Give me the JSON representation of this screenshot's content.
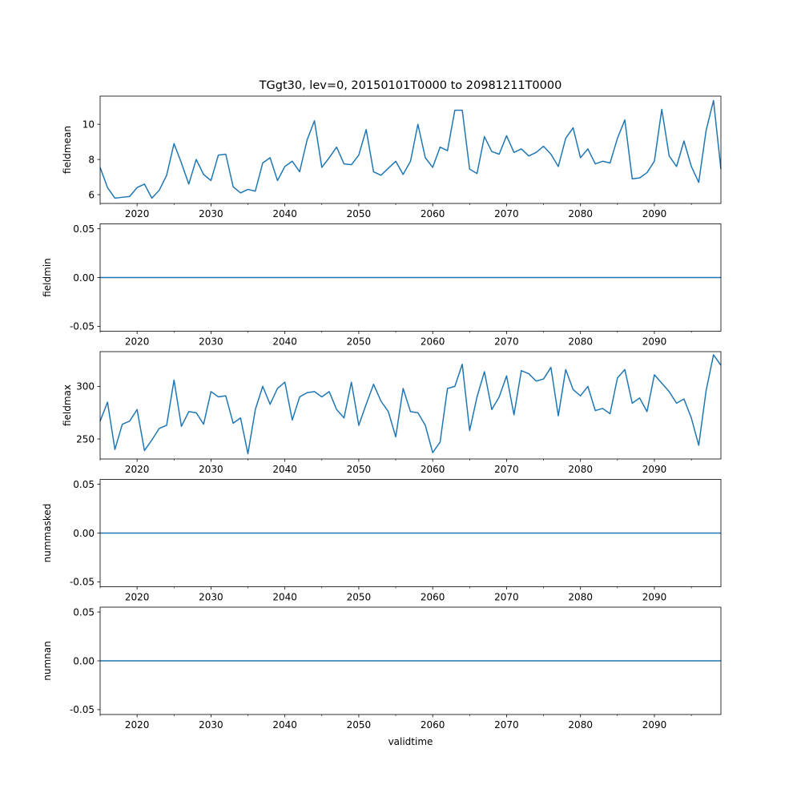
{
  "title": "TGgt30, lev=0, 20150101T0000 to 20981211T0000",
  "xlabel": "validtime",
  "line_color": "#1f77b4",
  "chart_data": [
    {
      "type": "line",
      "ylabel": "fieldmean",
      "xlim": [
        2015,
        2099
      ],
      "ylim": [
        5.5,
        11.6
      ],
      "yticks": [
        6,
        8,
        10
      ],
      "xticks": [
        2020,
        2030,
        2040,
        2050,
        2060,
        2070,
        2080,
        2090
      ],
      "x": [
        2015,
        2016,
        2017,
        2018,
        2019,
        2020,
        2021,
        2022,
        2023,
        2024,
        2025,
        2026,
        2027,
        2028,
        2029,
        2030,
        2031,
        2032,
        2033,
        2034,
        2035,
        2036,
        2037,
        2038,
        2039,
        2040,
        2041,
        2042,
        2043,
        2044,
        2045,
        2046,
        2047,
        2048,
        2049,
        2050,
        2051,
        2052,
        2053,
        2054,
        2055,
        2056,
        2057,
        2058,
        2059,
        2060,
        2061,
        2062,
        2063,
        2064,
        2065,
        2066,
        2067,
        2068,
        2069,
        2070,
        2071,
        2072,
        2073,
        2074,
        2075,
        2076,
        2077,
        2078,
        2079,
        2080,
        2081,
        2082,
        2083,
        2084,
        2085,
        2086,
        2087,
        2088,
        2089,
        2090,
        2091,
        2092,
        2093,
        2094,
        2095,
        2096,
        2097,
        2098,
        2099
      ],
      "values": [
        7.55,
        6.4,
        5.8,
        5.85,
        5.9,
        6.4,
        6.6,
        5.8,
        6.25,
        7.1,
        8.9,
        7.8,
        6.6,
        8.0,
        7.15,
        6.8,
        8.25,
        8.3,
        6.45,
        6.1,
        6.3,
        6.2,
        7.8,
        8.1,
        6.8,
        7.6,
        7.9,
        7.3,
        9.1,
        10.2,
        7.55,
        8.1,
        8.7,
        7.75,
        7.7,
        8.25,
        9.7,
        7.3,
        7.1,
        7.5,
        7.9,
        7.15,
        7.9,
        10.0,
        8.1,
        7.55,
        8.7,
        8.5,
        10.8,
        10.8,
        7.45,
        7.2,
        9.3,
        8.45,
        8.3,
        9.35,
        8.4,
        8.6,
        8.2,
        8.4,
        8.75,
        8.3,
        7.6,
        9.2,
        9.8,
        8.1,
        8.6,
        7.75,
        7.9,
        7.8,
        9.2,
        10.25,
        6.9,
        6.95,
        7.25,
        7.9,
        10.85,
        8.2,
        7.6,
        9.05,
        7.6,
        6.7,
        9.65,
        11.35,
        7.45
      ]
    },
    {
      "type": "line",
      "ylabel": "fieldmin",
      "xlim": [
        2015,
        2099
      ],
      "ylim": [
        -0.055,
        0.055
      ],
      "yticks": [
        -0.05,
        0.0,
        0.05
      ],
      "xticks": [
        2020,
        2030,
        2040,
        2050,
        2060,
        2070,
        2080,
        2090
      ],
      "x": [
        2015,
        2099
      ],
      "values": [
        0,
        0
      ]
    },
    {
      "type": "line",
      "ylabel": "fieldmax",
      "xlim": [
        2015,
        2099
      ],
      "ylim": [
        231,
        333
      ],
      "yticks": [
        250,
        300
      ],
      "xticks": [
        2020,
        2030,
        2040,
        2050,
        2060,
        2070,
        2080,
        2090
      ],
      "x": [
        2015,
        2016,
        2017,
        2018,
        2019,
        2020,
        2021,
        2022,
        2023,
        2024,
        2025,
        2026,
        2027,
        2028,
        2029,
        2030,
        2031,
        2032,
        2033,
        2034,
        2035,
        2036,
        2037,
        2038,
        2039,
        2040,
        2041,
        2042,
        2043,
        2044,
        2045,
        2046,
        2047,
        2048,
        2049,
        2050,
        2051,
        2052,
        2053,
        2054,
        2055,
        2056,
        2057,
        2058,
        2059,
        2060,
        2061,
        2062,
        2063,
        2064,
        2065,
        2066,
        2067,
        2068,
        2069,
        2070,
        2071,
        2072,
        2073,
        2074,
        2075,
        2076,
        2077,
        2078,
        2079,
        2080,
        2081,
        2082,
        2083,
        2084,
        2085,
        2086,
        2087,
        2088,
        2089,
        2090,
        2091,
        2092,
        2093,
        2094,
        2095,
        2096,
        2097,
        2098,
        2099
      ],
      "values": [
        267,
        285,
        240,
        264,
        267,
        278,
        239,
        249,
        260,
        263,
        306,
        262,
        276,
        275,
        264,
        295,
        290,
        291,
        265,
        270,
        236,
        278,
        300,
        283,
        298,
        304,
        268,
        290,
        294,
        295,
        290,
        295,
        278,
        270,
        304,
        263,
        283,
        302,
        286,
        276,
        252,
        298,
        276,
        275,
        263,
        237,
        247,
        298,
        300,
        321,
        258,
        290,
        314,
        278,
        290,
        310,
        273,
        315,
        312,
        305,
        307,
        318,
        272,
        316,
        297,
        291,
        300,
        277,
        279,
        274,
        308,
        316,
        284,
        289,
        276,
        311,
        303,
        295,
        284,
        288,
        270,
        244,
        296,
        330,
        320
      ]
    },
    {
      "type": "line",
      "ylabel": "nummasked",
      "xlim": [
        2015,
        2099
      ],
      "ylim": [
        -0.055,
        0.055
      ],
      "yticks": [
        -0.05,
        0.0,
        0.05
      ],
      "xticks": [
        2020,
        2030,
        2040,
        2050,
        2060,
        2070,
        2080,
        2090
      ],
      "x": [
        2015,
        2099
      ],
      "values": [
        0,
        0
      ]
    },
    {
      "type": "line",
      "ylabel": "numnan",
      "xlim": [
        2015,
        2099
      ],
      "ylim": [
        -0.055,
        0.055
      ],
      "yticks": [
        -0.05,
        0.0,
        0.05
      ],
      "xticks": [
        2020,
        2030,
        2040,
        2050,
        2060,
        2070,
        2080,
        2090
      ],
      "x": [
        2015,
        2099
      ],
      "values": [
        0,
        0
      ]
    }
  ]
}
